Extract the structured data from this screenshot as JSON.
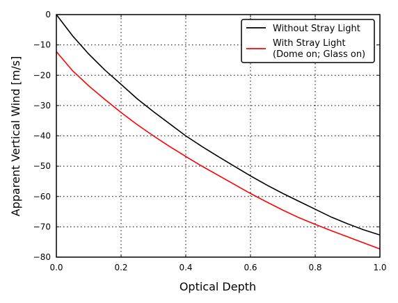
{
  "chart_data": {
    "type": "line",
    "xlabel": "Optical Depth",
    "ylabel": "Apparent Vertical Wind [m/s]",
    "xlim": [
      0.0,
      1.0
    ],
    "ylim": [
      -80,
      0
    ],
    "x_ticks": [
      "0.0",
      "0.2",
      "0.4",
      "0.6",
      "0.8",
      "1.0"
    ],
    "y_ticks": [
      "0",
      "−10",
      "−20",
      "−30",
      "−40",
      "−50",
      "−60",
      "−70",
      "−80"
    ],
    "grid": true,
    "legend_position": "top-right",
    "series": [
      {
        "name": "Without Stray Light",
        "color": "#000000",
        "x": [
          0.0,
          0.05,
          0.1,
          0.15,
          0.2,
          0.25,
          0.3,
          0.35,
          0.4,
          0.45,
          0.5,
          0.55,
          0.6,
          0.65,
          0.7,
          0.75,
          0.8,
          0.85,
          0.9,
          0.95,
          1.0
        ],
        "y": [
          0.0,
          -7.0,
          -13.0,
          -18.3,
          -23.0,
          -27.8,
          -32.0,
          -36.0,
          -40.0,
          -43.5,
          -46.8,
          -50.0,
          -53.2,
          -56.2,
          -59.0,
          -61.6,
          -64.2,
          -66.8,
          -69.0,
          -71.0,
          -72.7
        ]
      },
      {
        "name": "With Stray Light\n(Dome on; Glass on)",
        "legend_lines": [
          "With Stray Light",
          "(Dome on; Glass on)"
        ],
        "color": "#ff0000",
        "x": [
          0.0,
          0.05,
          0.1,
          0.15,
          0.2,
          0.25,
          0.3,
          0.35,
          0.4,
          0.45,
          0.5,
          0.55,
          0.6,
          0.65,
          0.7,
          0.75,
          0.8,
          0.85,
          0.9,
          0.95,
          1.0
        ],
        "y": [
          -12.2,
          -18.5,
          -23.5,
          -28.0,
          -32.3,
          -36.3,
          -40.0,
          -43.5,
          -46.8,
          -50.0,
          -53.0,
          -56.0,
          -59.0,
          -61.8,
          -64.5,
          -67.0,
          -69.2,
          -71.3,
          -73.3,
          -75.3,
          -77.3
        ]
      }
    ]
  }
}
